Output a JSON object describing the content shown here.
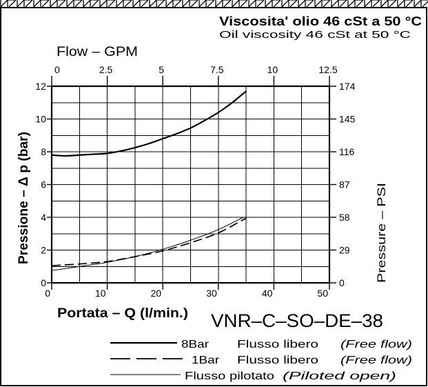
{
  "chart_data": {
    "type": "line",
    "title": "Viscosita' olio 46 cSt a 50 °C",
    "subtitle": "Oil viscosity 46 cSt at 50 °C",
    "model": "VNR–C–SO–DE–38",
    "grid": true,
    "legend_placement": "bottom",
    "x_axis": {
      "label": "Portata – Q (l/min.)",
      "range": [
        0,
        50
      ],
      "ticks": [
        0,
        10,
        20,
        30,
        40,
        50
      ]
    },
    "x2_axis": {
      "label": "Flow – GPM",
      "range": [
        0,
        12.5
      ],
      "ticks": [
        0,
        2.5,
        5,
        7.5,
        10,
        12.5
      ]
    },
    "y_axis": {
      "label": "Pressione – Δ p (bar)",
      "range": [
        0,
        12
      ],
      "ticks": [
        0,
        2,
        4,
        6,
        8,
        10,
        12
      ]
    },
    "y2_axis": {
      "label": "Pressure – PSI",
      "range": [
        0,
        174
      ],
      "ticks": [
        0,
        29,
        58,
        87,
        116,
        145,
        174
      ]
    },
    "series": [
      {
        "tag": "8Bar",
        "label_it": "Flusso libero",
        "label_en": "(Free flow)",
        "line_style": "bold",
        "x": [
          0,
          2.5,
          5,
          7.5,
          10,
          12.5,
          15,
          17.5,
          20,
          22.5,
          25,
          27.5,
          30,
          32.5,
          35
        ],
        "y": [
          7.8,
          7.75,
          7.8,
          7.85,
          7.9,
          8.05,
          8.25,
          8.5,
          8.8,
          9.1,
          9.45,
          9.9,
          10.4,
          11.0,
          11.7
        ]
      },
      {
        "tag": "1Bar",
        "label_it": "Flusso libero",
        "label_en": "(Free flow)",
        "line_style": "dashed",
        "x": [
          0,
          5,
          10,
          15,
          20,
          25,
          30,
          35
        ],
        "y": [
          1.05,
          1.15,
          1.3,
          1.6,
          1.95,
          2.45,
          3.05,
          3.95
        ]
      },
      {
        "label_it": "Flusso pilotato",
        "label_en": "(Piloted open)",
        "line_style": "thin",
        "x": [
          0,
          5,
          10,
          15,
          20,
          25,
          30,
          34.5
        ],
        "y": [
          0.75,
          1.0,
          1.25,
          1.6,
          2.05,
          2.6,
          3.25,
          4.0
        ]
      }
    ]
  }
}
